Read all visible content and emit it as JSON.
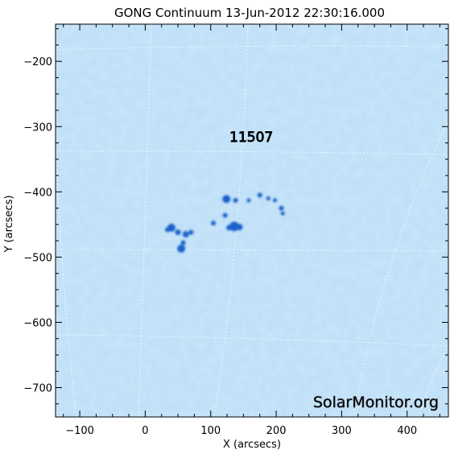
{
  "title": "GONG Continuum 13-Jun-2012 22:30:16.000",
  "xlabel": "X (arcsecs)",
  "ylabel": "Y (arcsecs)",
  "region_label": "11507",
  "watermark": "SolarMonitor.org",
  "colors": {
    "disk": "#bfe0f8",
    "spot": "#1e62c8",
    "grid": "#ffffff",
    "axis": "#000000"
  },
  "chart_data": {
    "type": "heatmap",
    "xlim": [
      -137,
      463
    ],
    "ylim": [
      -745,
      -143
    ],
    "x_ticks": [
      -100,
      0,
      100,
      200,
      300,
      400
    ],
    "y_ticks": [
      -200,
      -300,
      -400,
      -500,
      -600,
      -700
    ],
    "x_tick_labels": [
      "−100",
      "0",
      "100",
      "200",
      "300",
      "400"
    ],
    "y_tick_labels": [
      "−200",
      "−300",
      "−400",
      "−500",
      "−600",
      "−700"
    ],
    "active_region": {
      "number": "11507",
      "x": 162,
      "y": -316
    },
    "spots": [
      {
        "x": 124,
        "y": -411,
        "r": 5
      },
      {
        "x": 138,
        "y": -413,
        "r": 3
      },
      {
        "x": 158,
        "y": -413,
        "r": 2.5
      },
      {
        "x": 175,
        "y": -405,
        "r": 3
      },
      {
        "x": 188,
        "y": -410,
        "r": 2.5
      },
      {
        "x": 198,
        "y": -413,
        "r": 2.5
      },
      {
        "x": 208,
        "y": -425,
        "r": 3
      },
      {
        "x": 210,
        "y": -433,
        "r": 2.5
      },
      {
        "x": 122,
        "y": -436,
        "r": 3
      },
      {
        "x": 104,
        "y": -448,
        "r": 3
      },
      {
        "x": 136,
        "y": -453,
        "r": 6
      },
      {
        "x": 128,
        "y": -455,
        "r": 3.5
      },
      {
        "x": 144,
        "y": -454,
        "r": 4
      },
      {
        "x": 40,
        "y": -455,
        "r": 5
      },
      {
        "x": 34,
        "y": -458,
        "r": 3
      },
      {
        "x": 50,
        "y": -462,
        "r": 3.5
      },
      {
        "x": 62,
        "y": -465,
        "r": 4
      },
      {
        "x": 70,
        "y": -462,
        "r": 3
      },
      {
        "x": 58,
        "y": -478,
        "r": 3
      },
      {
        "x": 55,
        "y": -487,
        "r": 5
      }
    ]
  }
}
